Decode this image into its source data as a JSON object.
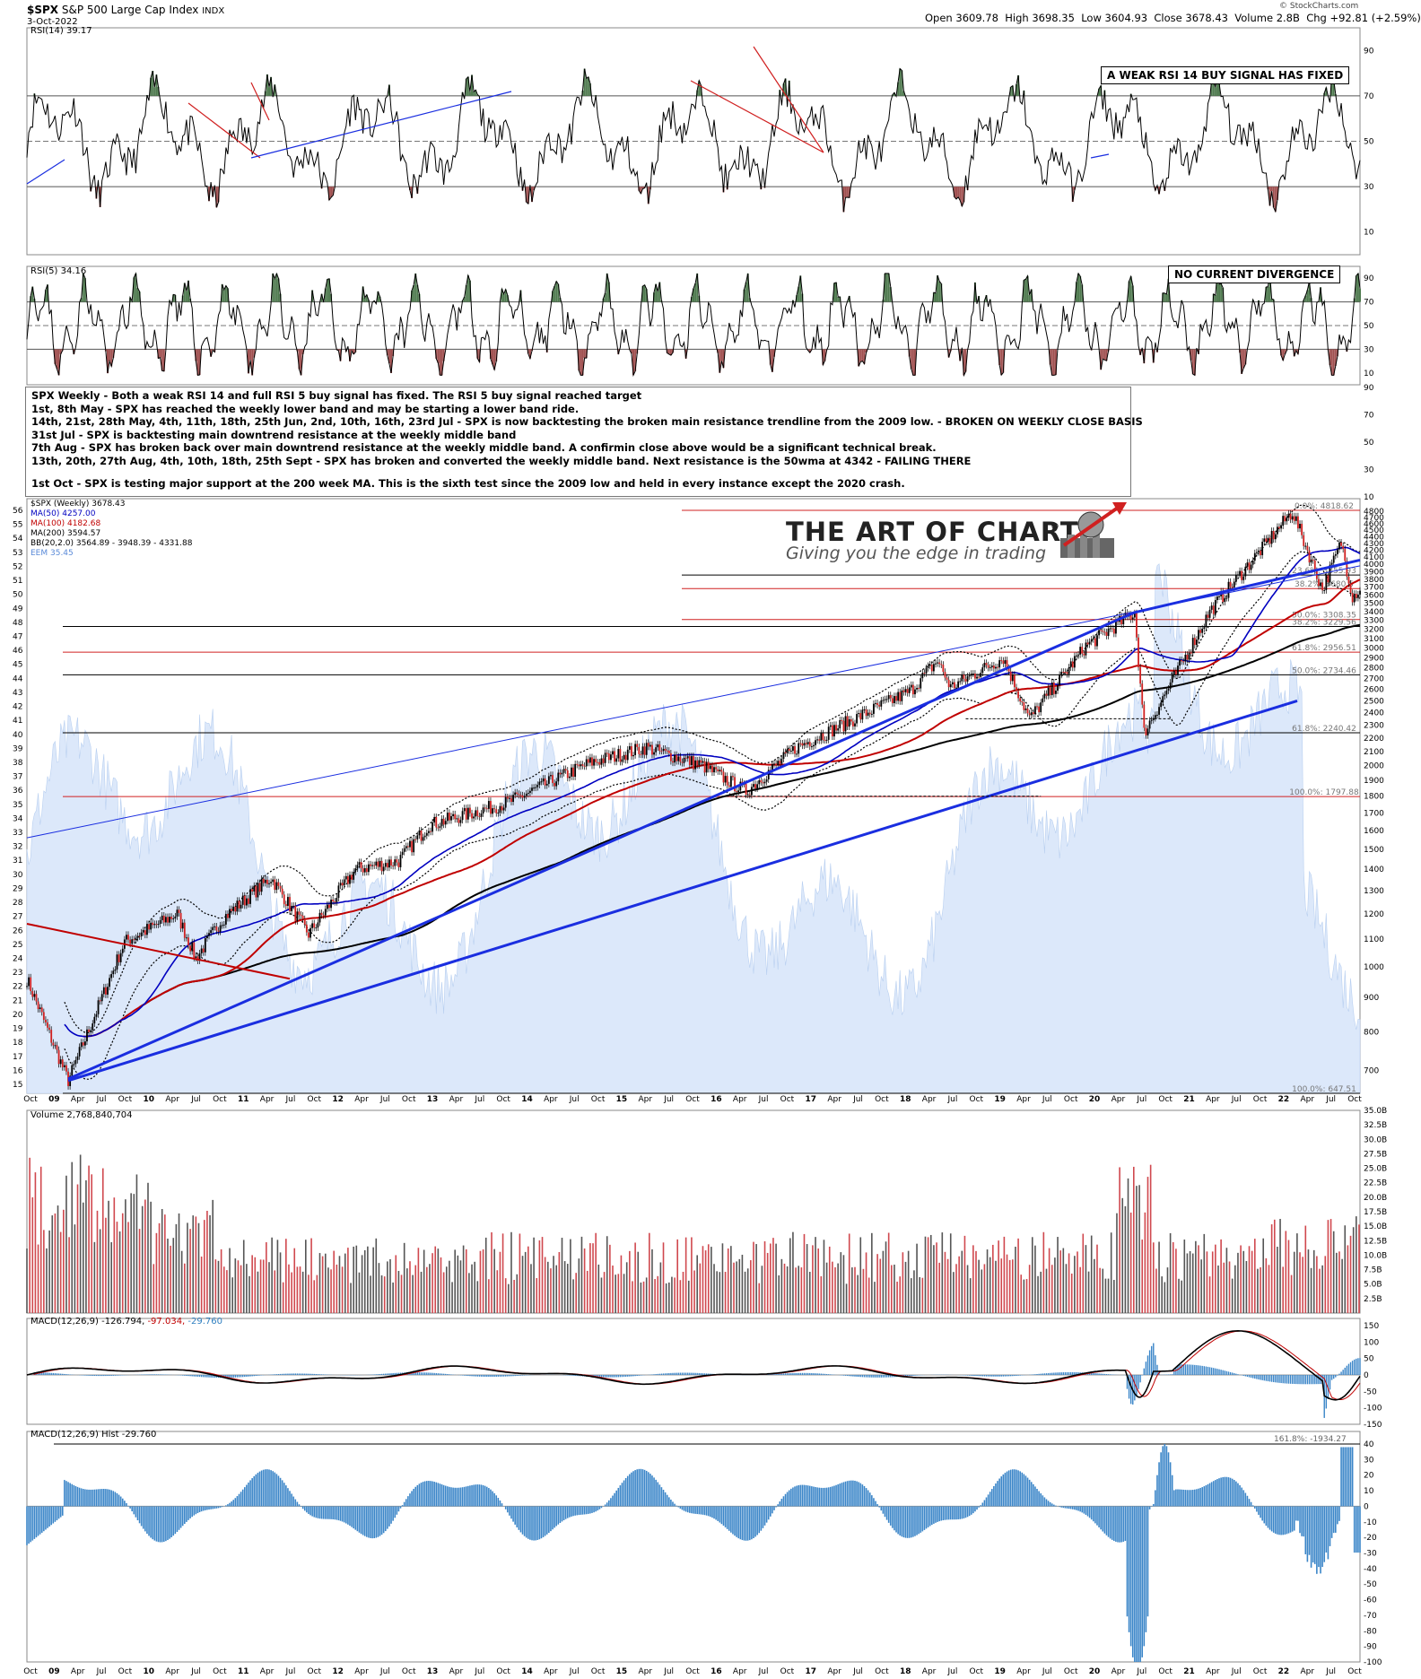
{
  "header": {
    "symbol": "$SPX",
    "name": "S&P 500 Large Cap Index",
    "exchange": "INDX",
    "date": "3-Oct-2022",
    "open_label": "Open",
    "open": "3609.78",
    "high_label": "High",
    "high": "3698.35",
    "low_label": "Low",
    "low": "3604.93",
    "close_label": "Close",
    "close": "3678.43",
    "volume_label": "Volume",
    "volume": "2.8B",
    "chg_label": "Chg",
    "chg": "+92.81 (+2.59%)",
    "source": "© StockCharts.com"
  },
  "panels": {
    "rsi14": {
      "label": "RSI(14) 39.17",
      "ticks": [
        "90",
        "70",
        "50",
        "30",
        "10"
      ]
    },
    "rsi5": {
      "label": "RSI(5) 34.16",
      "ticks": [
        "90",
        "70",
        "50",
        "30",
        "10"
      ]
    },
    "rsi_right": {
      "ticks": [
        "90",
        "70",
        "50",
        "30",
        "10"
      ]
    },
    "price": {
      "label": "$SPX (Weekly) 3678.43",
      "ma50": "MA(50) 4257.00",
      "ma100": "MA(100) 4182.68",
      "ma200": "MA(200) 3594.57",
      "bb": "BB(20,2.0) 3564.89 - 3948.39 - 4331.88",
      "eem": "EEM 35.45",
      "right_ticks": [
        "4800",
        "4700",
        "4600",
        "4500",
        "4400",
        "4300",
        "4200",
        "4100",
        "4000",
        "3900",
        "3800",
        "3700",
        "3600",
        "3500",
        "3400",
        "3300",
        "3200",
        "3100",
        "3000",
        "2900",
        "2800",
        "2700",
        "2600",
        "2500",
        "2400",
        "2300",
        "2200",
        "2100",
        "2000",
        "1900",
        "1800",
        "1700",
        "1600",
        "1500",
        "1400",
        "1300",
        "1200",
        "1100",
        "1000",
        "900",
        "800",
        "700"
      ],
      "left_ticks": [
        "56",
        "55",
        "54",
        "53",
        "52",
        "51",
        "50",
        "49",
        "48",
        "47",
        "46",
        "45",
        "44",
        "43",
        "42",
        "41",
        "40",
        "39",
        "38",
        "37",
        "36",
        "35",
        "34",
        "33",
        "32",
        "31",
        "30",
        "29",
        "28",
        "27",
        "26",
        "25",
        "24",
        "23",
        "22",
        "21",
        "20",
        "19",
        "18",
        "17",
        "16",
        "15"
      ],
      "fib_labels": [
        {
          "text": "0.0%: 4818.62",
          "value": 4818
        },
        {
          "text": "23.6%: 3855.93",
          "value": 3856
        },
        {
          "text": "38.2%: 3680.5",
          "value": 3680
        },
        {
          "text": "50.0%: 3308.35",
          "value": 3308
        },
        {
          "text": "38.2%: 3229.56",
          "value": 3229
        },
        {
          "text": "61.8%: 2956.51",
          "value": 2956
        },
        {
          "text": "50.0%: 2734.46",
          "value": 2734
        },
        {
          "text": "61.8%: 2240.42",
          "value": 2240
        },
        {
          "text": "100.0%: 1797.88",
          "value": 1798
        },
        {
          "text": "100.0%: 647.51",
          "value": 647
        }
      ]
    },
    "volume": {
      "label": "Volume 2,768,840,704",
      "ticks": [
        "35.0B",
        "32.5B",
        "30.0B",
        "27.5B",
        "25.0B",
        "22.5B",
        "20.0B",
        "17.5B",
        "15.0B",
        "12.5B",
        "10.0B",
        "7.5B",
        "5.0B",
        "2.5B"
      ]
    },
    "macd": {
      "label_a": "MACD(12,26,9) -126.794,",
      "label_b": "-97.034,",
      "label_c": "-29.760",
      "ticks": [
        "150",
        "100",
        "50",
        "0",
        "-50",
        "-100",
        "-150"
      ]
    },
    "hist": {
      "label": "MACD(12,26,9) Hist -29.760",
      "fib": "161.8%: -1934.27",
      "ticks": [
        "40",
        "30",
        "20",
        "10",
        "0",
        "-10",
        "-20",
        "-30",
        "-40",
        "-50",
        "-60",
        "-70",
        "-80",
        "-90",
        "-100"
      ]
    }
  },
  "x_axis": [
    "Oct",
    "09",
    "Apr",
    "Jul",
    "Oct",
    "10",
    "Apr",
    "Jul",
    "Oct",
    "11",
    "Apr",
    "Jul",
    "Oct",
    "12",
    "Apr",
    "Jul",
    "Oct",
    "13",
    "Apr",
    "Jul",
    "Oct",
    "14",
    "Apr",
    "Jul",
    "Oct",
    "15",
    "Apr",
    "Jul",
    "Oct",
    "16",
    "Apr",
    "Jul",
    "Oct",
    "17",
    "Apr",
    "Jul",
    "Oct",
    "18",
    "Apr",
    "Jul",
    "Oct",
    "19",
    "Apr",
    "Jul",
    "Oct",
    "20",
    "Apr",
    "Jul",
    "Oct",
    "21",
    "Apr",
    "Jul",
    "Oct",
    "22",
    "Apr",
    "Jul",
    "Oct"
  ],
  "callouts": {
    "rsi14": "A WEAK RSI 14 BUY SIGNAL HAS FIXED",
    "rsi5": "NO CURRENT DIVERGENCE"
  },
  "logo": {
    "title": "THE ART OF CHART",
    "reg": "®",
    "tagline": "Giving you the edge in trading"
  },
  "notes": [
    "SPX Weekly - Both a weak RSI 14 and full RSI 5 buy signal has fixed. The RSI 5 buy signal reached target",
    "1st, 8th May - SPX has reached the weekly lower band and may be starting a lower band ride.",
    "14th, 21st, 28th May, 4th, 11th, 18th, 25th Jun, 2nd, 10th, 16th, 23rd Jul - SPX is now backtesting the broken main resistance trendline from the 2009 low. - BROKEN ON WEEKLY CLOSE BASIS",
    "31st Jul - SPX is backtesting main downtrend resistance at the weekly middle band",
    "7th Aug - SPX has broken back over main downtrend resistance at the weekly middle band. A confirmin close above would be a significant technical break.",
    "13th, 20th, 27th Aug, 4th, 10th, 18th, 25th Sept - SPX has broken and converted the weekly middle band. Next resistance is the 50wma at 4342 - FAILING THERE",
    "",
    "1st Oct - SPX is testing major support at the 200 week MA. This is the sixth test since the 2009 low and held in every instance except the 2020 crash."
  ],
  "chart_data": [
    {
      "type": "line",
      "title": "RSI(14)",
      "value": 39.17,
      "ylim": [
        0,
        100
      ],
      "guides": [
        70,
        50,
        30
      ]
    },
    {
      "type": "line",
      "title": "RSI(5)",
      "value": 34.16,
      "ylim": [
        0,
        100
      ],
      "guides": [
        70,
        50,
        30
      ]
    },
    {
      "type": "line",
      "title": "$SPX (Weekly)",
      "last": 3678.43,
      "x": [
        "2009-03",
        "2009-10",
        "2010-04",
        "2011-04",
        "2011-10",
        "2012-10",
        "2013-10",
        "2014-10",
        "2015-06",
        "2016-02",
        "2016-10",
        "2017-10",
        "2018-01",
        "2018-12",
        "2019-07",
        "2020-02",
        "2020-03",
        "2020-10",
        "2021-06",
        "2022-01",
        "2022-06",
        "2022-08",
        "2022-10"
      ],
      "y": [
        676,
        1090,
        1200,
        1360,
        1120,
        1440,
        1760,
        2020,
        2130,
        1830,
        2130,
        2580,
        2870,
        2350,
        3020,
        3390,
        2240,
        3400,
        4300,
        4800,
        3670,
        4310,
        3678
      ],
      "ylim": [
        647,
        4818
      ],
      "scale": "log",
      "series_values": {
        "MA(50)": 4257.0,
        "MA(100)": 4182.68,
        "MA(200)": 3594.57,
        "BB lower": 3564.89,
        "BB middle": 3948.39,
        "BB upper": 4331.88,
        "EEM": 35.45
      }
    },
    {
      "type": "bar",
      "title": "Volume",
      "last": 2768840704,
      "ylim": [
        0,
        35000000000
      ]
    },
    {
      "type": "line",
      "title": "MACD(12,26,9)",
      "macd": -126.794,
      "signal": -97.034,
      "hist": -29.76,
      "ylim": [
        -150,
        150
      ]
    },
    {
      "type": "bar",
      "title": "MACD(12,26,9) Hist",
      "value": -29.76,
      "ylim": [
        -100,
        40
      ]
    }
  ]
}
